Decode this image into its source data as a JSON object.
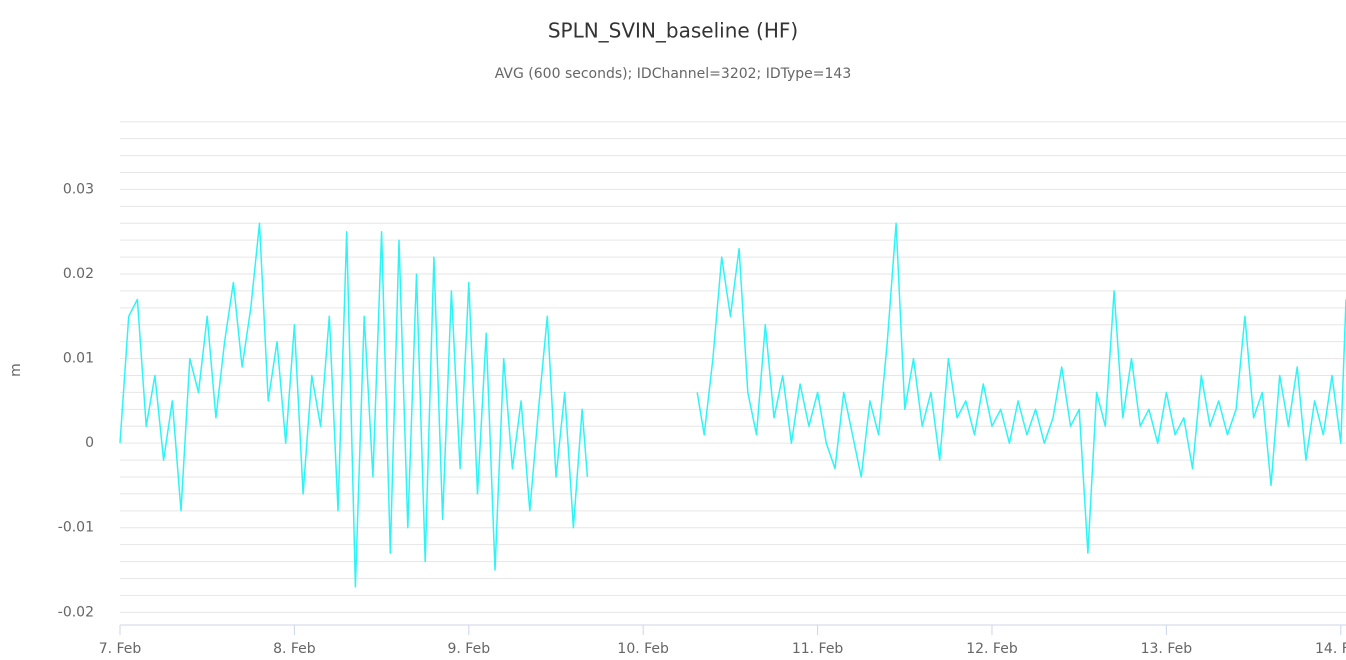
{
  "chart_data": {
    "type": "line",
    "title": "SPLN_SVIN_baseline (HF)",
    "subtitle": "AVG (600 seconds); IDChannel=3202; IDType=143",
    "y_label": "m",
    "xlim": [
      7,
      14.03
    ],
    "xticks": [
      {
        "value": 7,
        "label": "7. Feb"
      },
      {
        "value": 8,
        "label": "8. Feb"
      },
      {
        "value": 9,
        "label": "9. Feb"
      },
      {
        "value": 10,
        "label": "10. Feb"
      },
      {
        "value": 11,
        "label": "11. Feb"
      },
      {
        "value": 12,
        "label": "12. Feb"
      },
      {
        "value": 13,
        "label": "13. Feb"
      },
      {
        "value": 14,
        "label": "14. Feb"
      }
    ],
    "ylim": [
      -0.0215,
      0.0388
    ],
    "yticks": [
      -0.02,
      -0.01,
      0,
      0.01,
      0.02,
      0.03
    ],
    "minor_yticks": [
      -0.018,
      -0.016,
      -0.014,
      -0.012,
      -0.008,
      -0.006,
      -0.004,
      -0.002,
      0.002,
      0.004,
      0.006,
      0.008,
      0.012,
      0.014,
      0.016,
      0.018,
      0.022,
      0.024,
      0.026,
      0.028,
      0.032,
      0.034,
      0.036,
      0.038
    ],
    "grid": true,
    "x": [
      7.0,
      7.05,
      7.1,
      7.15,
      7.2,
      7.25,
      7.3,
      7.35,
      7.4,
      7.45,
      7.5,
      7.55,
      7.6,
      7.65,
      7.7,
      7.75,
      7.8,
      7.85,
      7.9,
      7.95,
      8.0,
      8.05,
      8.1,
      8.15,
      8.2,
      8.25,
      8.3,
      8.35,
      8.4,
      8.45,
      8.5,
      8.55,
      8.6,
      8.65,
      8.7,
      8.75,
      8.8,
      8.85,
      8.9,
      8.95,
      9.0,
      9.05,
      9.1,
      9.15,
      9.2,
      9.25,
      9.3,
      9.35,
      9.4,
      9.45,
      9.5,
      9.55,
      9.6,
      9.65,
      9.68,
      10.0,
      10.31,
      10.35,
      10.4,
      10.45,
      10.5,
      10.55,
      10.6,
      10.65,
      10.7,
      10.75,
      10.8,
      10.85,
      10.9,
      10.95,
      11.0,
      11.05,
      11.1,
      11.15,
      11.2,
      11.25,
      11.3,
      11.35,
      11.4,
      11.45,
      11.5,
      11.55,
      11.6,
      11.65,
      11.7,
      11.75,
      11.8,
      11.85,
      11.9,
      11.95,
      12.0,
      12.05,
      12.1,
      12.15,
      12.2,
      12.25,
      12.3,
      12.35,
      12.4,
      12.45,
      12.5,
      12.55,
      12.6,
      12.65,
      12.7,
      12.75,
      12.8,
      12.85,
      12.9,
      12.95,
      13.0,
      13.05,
      13.1,
      13.15,
      13.2,
      13.25,
      13.3,
      13.35,
      13.4,
      13.45,
      13.5,
      13.55,
      13.6,
      13.65,
      13.7,
      13.75,
      13.8,
      13.85,
      13.9,
      13.95,
      14.0,
      14.03
    ],
    "series": [
      {
        "color": "#2ef5f5",
        "values": [
          0.0,
          0.015,
          0.017,
          0.002,
          0.008,
          -0.002,
          0.005,
          -0.008,
          0.01,
          0.006,
          0.015,
          0.003,
          0.012,
          0.019,
          0.009,
          0.016,
          0.026,
          0.005,
          0.012,
          0.0,
          0.014,
          -0.006,
          0.008,
          0.002,
          0.015,
          -0.008,
          0.025,
          -0.017,
          0.015,
          -0.004,
          0.025,
          -0.013,
          0.024,
          -0.01,
          0.02,
          -0.014,
          0.022,
          -0.009,
          0.018,
          -0.003,
          0.019,
          -0.006,
          0.013,
          -0.015,
          0.01,
          -0.003,
          0.005,
          -0.008,
          0.004,
          0.015,
          -0.004,
          0.006,
          -0.01,
          0.004,
          -0.004,
          null,
          0.006,
          0.001,
          0.01,
          0.022,
          0.015,
          0.023,
          0.006,
          0.001,
          0.014,
          0.003,
          0.008,
          0.0,
          0.007,
          0.002,
          0.006,
          0.0,
          -0.003,
          0.006,
          0.001,
          -0.004,
          0.005,
          0.001,
          0.012,
          0.026,
          0.004,
          0.01,
          0.002,
          0.006,
          -0.002,
          0.01,
          0.003,
          0.005,
          0.001,
          0.007,
          0.002,
          0.004,
          0.0,
          0.005,
          0.001,
          0.004,
          0.0,
          0.003,
          0.009,
          0.002,
          0.004,
          -0.013,
          0.006,
          0.002,
          0.018,
          0.003,
          0.01,
          0.002,
          0.004,
          0.0,
          0.006,
          0.001,
          0.003,
          -0.003,
          0.008,
          0.002,
          0.005,
          0.001,
          0.004,
          0.015,
          0.003,
          0.006,
          -0.005,
          0.008,
          0.002,
          0.009,
          -0.002,
          0.005,
          0.001,
          0.008,
          0.0,
          0.017
        ]
      }
    ]
  }
}
